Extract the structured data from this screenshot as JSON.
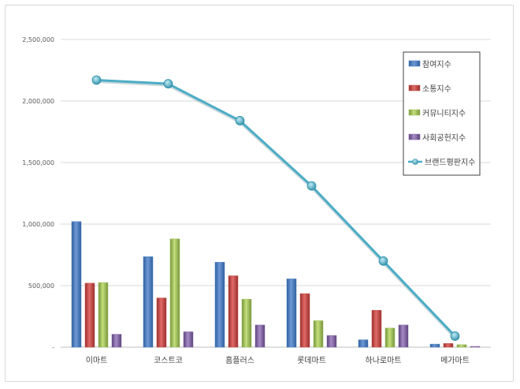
{
  "chart_data": {
    "type": "bar",
    "title": "",
    "xlabel": "",
    "ylabel": "",
    "ylim": [
      0,
      2500000
    ],
    "yticks": [
      0,
      500000,
      1000000,
      1500000,
      2000000,
      2500000
    ],
    "ytick_labels": [
      "-",
      "500,000",
      "1,000,000",
      "1,500,000",
      "2,000,000",
      "2,500,000"
    ],
    "grid": true,
    "legend_position": "right",
    "categories": [
      "이마트",
      "코스트코",
      "홈플러스",
      "롯데마트",
      "하나로마트",
      "메가마트"
    ],
    "series": [
      {
        "name": "참여지수",
        "type": "bar",
        "color": "#4a7ebb",
        "values": [
          1020000,
          735000,
          690000,
          555000,
          60000,
          25000
        ]
      },
      {
        "name": "소통지수",
        "type": "bar",
        "color": "#c0504d",
        "values": [
          520000,
          400000,
          580000,
          435000,
          300000,
          30000
        ]
      },
      {
        "name": "커뮤니티지수",
        "type": "bar",
        "color": "#9bbb59",
        "values": [
          525000,
          880000,
          390000,
          215000,
          155000,
          20000
        ]
      },
      {
        "name": "사회공헌지수",
        "type": "bar",
        "color": "#8064a2",
        "values": [
          105000,
          125000,
          180000,
          95000,
          180000,
          5000
        ]
      },
      {
        "name": "브랜드평판지수",
        "type": "line",
        "color": "#4bacc6",
        "values": [
          2170000,
          2140000,
          1840000,
          1310000,
          700000,
          90000
        ]
      }
    ]
  }
}
